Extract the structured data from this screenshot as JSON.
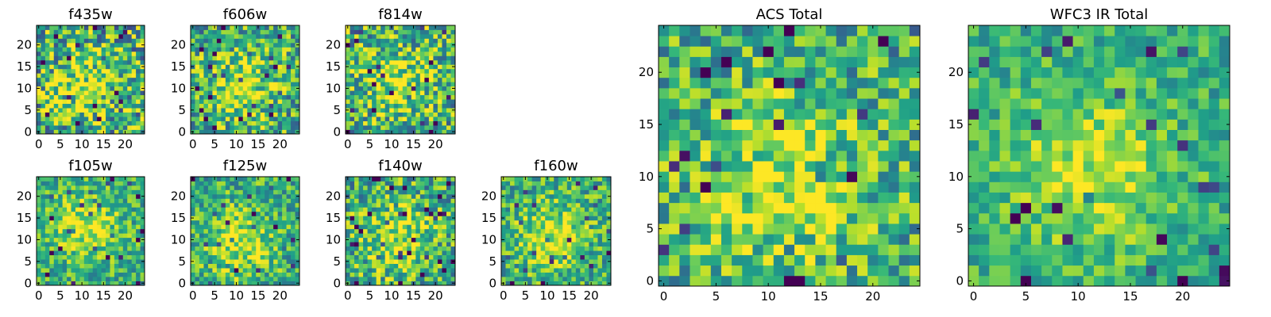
{
  "chart_data": [
    {
      "type": "heatmap",
      "title": "f435w",
      "xticks": [
        0,
        5,
        10,
        15,
        20
      ],
      "yticks": [
        0,
        5,
        10,
        15,
        20
      ],
      "grid": [
        25,
        25
      ],
      "xlim": [
        -0.5,
        24.5
      ],
      "ylim": [
        -0.5,
        24.5
      ],
      "colormap": "viridis",
      "seed": 11,
      "noise": 0.85
    },
    {
      "type": "heatmap",
      "title": "f606w",
      "xticks": [
        0,
        5,
        10,
        15,
        20
      ],
      "yticks": [
        0,
        5,
        10,
        15,
        20
      ],
      "grid": [
        25,
        25
      ],
      "xlim": [
        -0.5,
        24.5
      ],
      "ylim": [
        -0.5,
        24.5
      ],
      "colormap": "viridis",
      "seed": 23,
      "noise": 0.7
    },
    {
      "type": "heatmap",
      "title": "f814w",
      "xticks": [
        0,
        5,
        10,
        15,
        20
      ],
      "yticks": [
        0,
        5,
        10,
        15,
        20
      ],
      "grid": [
        25,
        25
      ],
      "xlim": [
        -0.5,
        24.5
      ],
      "ylim": [
        -0.5,
        24.5
      ],
      "colormap": "viridis",
      "seed": 37,
      "noise": 0.75
    },
    {
      "type": "heatmap",
      "title": "f105w",
      "xticks": [
        0,
        5,
        10,
        15,
        20
      ],
      "yticks": [
        0,
        5,
        10,
        15,
        20
      ],
      "grid": [
        25,
        25
      ],
      "xlim": [
        -0.5,
        24.5
      ],
      "ylim": [
        -0.5,
        24.5
      ],
      "colormap": "viridis",
      "seed": 41,
      "noise": 0.5
    },
    {
      "type": "heatmap",
      "title": "f125w",
      "xticks": [
        0,
        5,
        10,
        15,
        20
      ],
      "yticks": [
        0,
        5,
        10,
        15,
        20
      ],
      "grid": [
        25,
        25
      ],
      "xlim": [
        -0.5,
        24.5
      ],
      "ylim": [
        -0.5,
        24.5
      ],
      "colormap": "viridis",
      "seed": 53,
      "noise": 0.55
    },
    {
      "type": "heatmap",
      "title": "f140w",
      "xticks": [
        0,
        5,
        10,
        15,
        20
      ],
      "yticks": [
        0,
        5,
        10,
        15,
        20
      ],
      "grid": [
        25,
        25
      ],
      "xlim": [
        -0.5,
        24.5
      ],
      "ylim": [
        -0.5,
        24.5
      ],
      "colormap": "viridis",
      "seed": 67,
      "noise": 0.65
    },
    {
      "type": "heatmap",
      "title": "f160w",
      "xticks": [
        0,
        5,
        10,
        15,
        20
      ],
      "yticks": [
        0,
        5,
        10,
        15,
        20
      ],
      "grid": [
        25,
        25
      ],
      "xlim": [
        -0.5,
        24.5
      ],
      "ylim": [
        -0.5,
        24.5
      ],
      "colormap": "viridis",
      "seed": 79,
      "noise": 0.55
    },
    {
      "type": "heatmap",
      "title": "ACS Total",
      "xticks": [
        0,
        5,
        10,
        15,
        20
      ],
      "yticks": [
        0,
        5,
        10,
        15,
        20
      ],
      "grid": [
        25,
        25
      ],
      "xlim": [
        -0.5,
        24.5
      ],
      "ylim": [
        -0.5,
        24.5
      ],
      "colormap": "viridis",
      "seed": 97,
      "noise": 0.6
    },
    {
      "type": "heatmap",
      "title": "WFC3 IR Total",
      "xticks": [
        0,
        5,
        10,
        15,
        20
      ],
      "yticks": [
        0,
        5,
        10,
        15,
        20
      ],
      "grid": [
        25,
        25
      ],
      "xlim": [
        -0.5,
        24.5
      ],
      "ylim": [
        -0.5,
        24.5
      ],
      "colormap": "viridis",
      "seed": 101,
      "noise": 0.4
    }
  ]
}
